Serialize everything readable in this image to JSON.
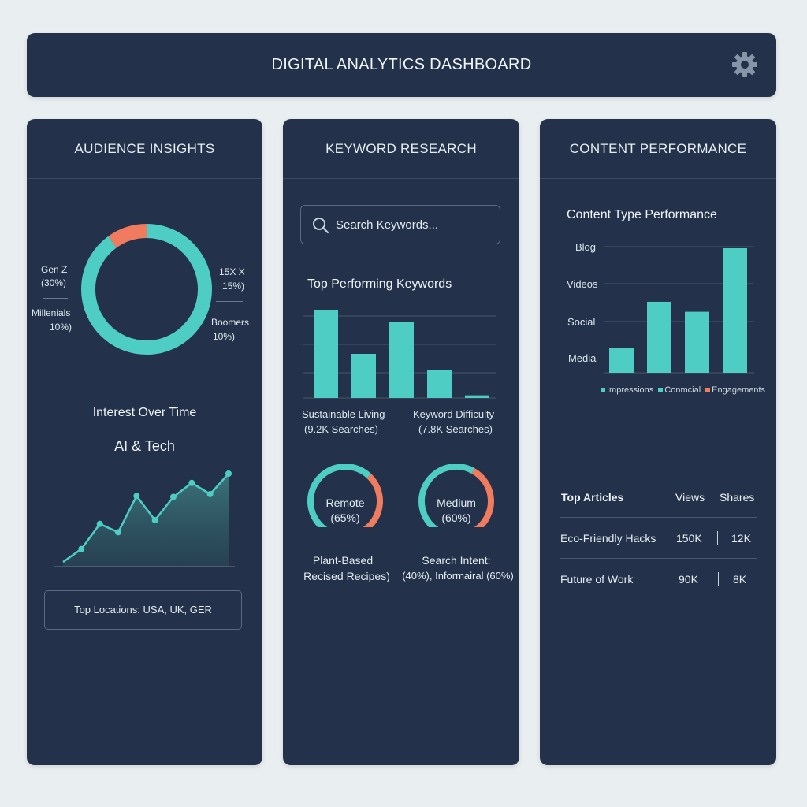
{
  "header": {
    "title": "DIGITAL ANALYTICS DASHBOARD"
  },
  "colors": {
    "teal": "#4ecdc4",
    "coral": "#f07b5e",
    "panel": "#23324a",
    "background": "#e9eef1"
  },
  "audience": {
    "title": "AUDIENCE INSIGHTS",
    "donut_labels": [
      {
        "name": "Gen Z",
        "value": "(30%)"
      },
      {
        "name": "Millenials",
        "value": "10%)"
      },
      {
        "name": "15X X",
        "value": "15%)"
      },
      {
        "name": "Boomers",
        "value": "10%)"
      }
    ],
    "interest_title": "Interest Over Time",
    "interest_subtitle": "AI & Tech",
    "locations": "Top Locations: USA, UK, GER"
  },
  "keyword": {
    "title": "KEYWORD RESEARCH",
    "search_placeholder": "Search Keywords...",
    "top_title": "Top Performing Keywords",
    "bar_label_1": "Sustainable Living",
    "bar_sub_1": "(9.2K Searches)",
    "bar_label_2": "Keyword Difficulty",
    "bar_sub_2": "(7.8K Searches)",
    "gauge1_label": "Remote",
    "gauge1_value": "(65%)",
    "gauge2_label": "Medium",
    "gauge2_value": "(60%)",
    "bottom_left_1": "Plant-Based",
    "bottom_left_2": "Recised Recipes)",
    "bottom_right_1": "Search Intent:",
    "bottom_right_2": "(40%), Informairal (60%)"
  },
  "content": {
    "title": "CONTENT PERFORMANCE",
    "chart_title": "Content Type Performance",
    "y_categories": [
      "Blog",
      "Videos",
      "Social",
      "Media"
    ],
    "legend": [
      {
        "label": "Impressions",
        "color": "#4ecdc4"
      },
      {
        "label": "Conmcial",
        "color": "#4ecdc4"
      },
      {
        "label": "Engagements",
        "color": "#f07b5e"
      }
    ],
    "table": {
      "headers": [
        "Top Articles",
        "Views",
        "Shares"
      ],
      "rows": [
        [
          "Eco-Friendly Hacks",
          "150K",
          "12K"
        ],
        [
          "Future of Work",
          "90K",
          "8K"
        ]
      ]
    }
  },
  "chart_data": [
    {
      "type": "pie",
      "name": "audience-donut",
      "slices": [
        {
          "label": "coral segment",
          "value": 10,
          "color": "#f07b5e"
        },
        {
          "label": "teal segment",
          "value": 90,
          "color": "#4ecdc4"
        }
      ]
    },
    {
      "type": "area",
      "name": "interest-over-time",
      "values": [
        5,
        19,
        46,
        37,
        76,
        50,
        75,
        90,
        78,
        100
      ],
      "ylim": [
        0,
        100
      ]
    },
    {
      "type": "bar",
      "name": "top-keywords",
      "values": [
        100,
        50,
        86,
        32,
        3
      ],
      "ylim": [
        0,
        100
      ]
    },
    {
      "type": "bar",
      "name": "content-type",
      "values": [
        20,
        57,
        49,
        100
      ],
      "ylim": [
        0,
        100
      ]
    },
    {
      "type": "gauge",
      "name": "gauge-remote",
      "value": 65
    },
    {
      "type": "gauge",
      "name": "gauge-medium",
      "value": 60
    }
  ]
}
